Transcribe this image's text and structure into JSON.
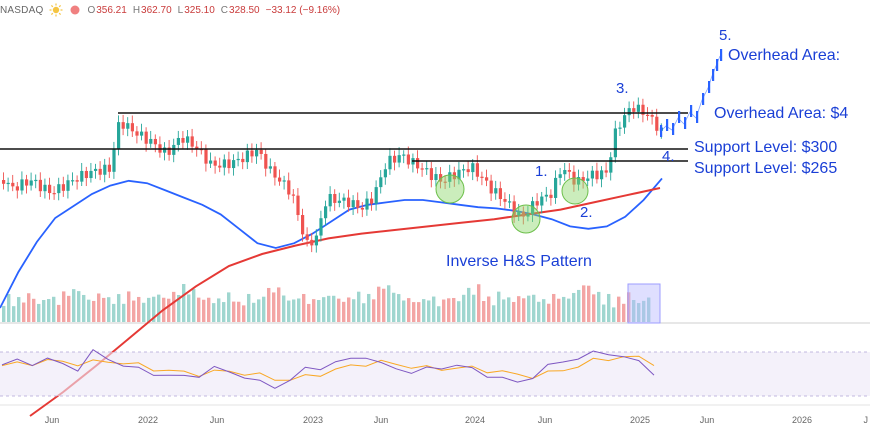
{
  "header": {
    "exchange": "NASDAQ",
    "open_label": "O",
    "open": "356.21",
    "high_label": "H",
    "high": "362.70",
    "low_label": "L",
    "low": "325.10",
    "close_label": "C",
    "close": "328.50",
    "change": "−33.12 (−9.16%)",
    "icons": [
      "sun-icon",
      "dot-icon"
    ]
  },
  "colors": {
    "up": "#26a69a",
    "down": "#ef5350",
    "ma50": "#2962ff",
    "ma200": "#e53935",
    "rsi": "#7e57c2",
    "rsi_ma": "#f9a825",
    "forecast": "#2962ff",
    "annotation": "#1a3fd6",
    "highlight_green": "#8bd66b",
    "volume_box": "#9c9cff"
  },
  "chart_data": [
    {
      "type": "line",
      "subtype": "candlestick",
      "title": "",
      "x_ticks": [
        "Jun",
        "2022",
        "Jun",
        "2023",
        "Jun",
        "2024",
        "Jun",
        "2025",
        "Jun",
        "2026"
      ],
      "series_price": {
        "approx_weekly_close": [
          200,
          225,
          250,
          230,
          255,
          280,
          300,
          285,
          265,
          240,
          262,
          255,
          230,
          200,
          185,
          170,
          190,
          210,
          215,
          230,
          250,
          245,
          260,
          255,
          240,
          255,
          250,
          235,
          245,
          240,
          225,
          215,
          190,
          205,
          215,
          230,
          255,
          290,
          320,
          345,
          340,
          325,
          300,
          290,
          305
        ]
      },
      "series": [
        {
          "name": "",
          "kind": "50-week MA",
          "values": [
            160,
            190,
            215,
            235,
            245,
            255,
            262,
            266,
            264,
            258,
            252,
            246,
            238,
            226,
            214,
            210,
            214,
            222,
            232,
            242,
            246,
            248,
            250,
            250,
            248,
            246,
            244,
            243,
            241,
            238,
            234,
            228,
            226,
            228,
            236,
            250,
            268
          ]
        },
        {
          "name": "",
          "kind": "200-week MA",
          "values": [
            70,
            90,
            112,
            135,
            158,
            178,
            195,
            205,
            212,
            218,
            222,
            225,
            228,
            231,
            234,
            238,
            242,
            248,
            254,
            260
          ]
        }
      ],
      "levels": [
        {
          "label": "Overhead Area: $4",
          "value": 340
        },
        {
          "label": "Support Level: $300",
          "value": 300
        },
        {
          "label": "Support Level: $265",
          "value": 265
        }
      ],
      "annotations": [
        "1.",
        "2.",
        "3.",
        "4.",
        "5.",
        "Overhead Area:",
        "Inverse H&S Pattern"
      ],
      "volume": {
        "type": "bar",
        "values": [
          9,
          11,
          8,
          10,
          9,
          12,
          10,
          8,
          9,
          11,
          10,
          9,
          12,
          14,
          13,
          15,
          11,
          10,
          9,
          12,
          11,
          10,
          9,
          11,
          10,
          12,
          11,
          10,
          9,
          10,
          11,
          12,
          10,
          11,
          12,
          14,
          16,
          15,
          13,
          12
        ]
      },
      "rsi": {
        "type": "line",
        "ylim": [
          0,
          100
        ],
        "band": [
          30,
          70
        ],
        "values": [
          55,
          60,
          58,
          62,
          56,
          50,
          72,
          64,
          55,
          48,
          44,
          40,
          38,
          42,
          50,
          45,
          40,
          30,
          25,
          35,
          48,
          52,
          58,
          62,
          68,
          55,
          50,
          46,
          48,
          52,
          55,
          48,
          42,
          36,
          30,
          40,
          52,
          60,
          65,
          70,
          72,
          66,
          58,
          45
        ],
        "ma_values": [
          54,
          56,
          58,
          60,
          59,
          57,
          58,
          60,
          58,
          54,
          50,
          47,
          44,
          43,
          45,
          46,
          44,
          40,
          36,
          35,
          38,
          43,
          48,
          53,
          57,
          58,
          56,
          53,
          50,
          50,
          51,
          50,
          48,
          45,
          41,
          40,
          43,
          48,
          54,
          60,
          64,
          66,
          64,
          58
        ]
      }
    }
  ]
}
